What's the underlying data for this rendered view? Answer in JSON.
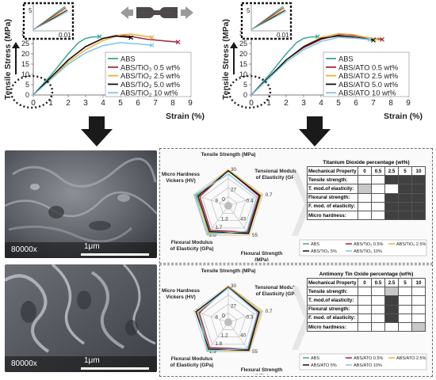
{
  "chart_data": [
    {
      "type": "line",
      "xlabel": "Strain (%)",
      "ylabel": "Tensile Stress (MPa)",
      "xlim": [
        0,
        9
      ],
      "ylim": [
        0,
        30
      ],
      "x_ticks": [
        "0",
        "1",
        "2",
        "3",
        "4",
        "5",
        "6",
        "7",
        "8",
        "9"
      ],
      "y_ticks": [
        "0",
        "5",
        "10",
        "15",
        "20",
        "25",
        "30"
      ],
      "inset_label": "0.01",
      "inset_y_label": "5",
      "series": [
        {
          "name": "ABS",
          "color": "#3aa897",
          "x": [
            0,
            1,
            2,
            2.6,
            3.0,
            3.4,
            3.8
          ],
          "y": [
            0,
            9.5,
            20,
            25.5,
            27.5,
            28.2,
            28.4
          ]
        },
        {
          "name": "ABS/TiO₂ 0.5 wt%",
          "color": "#a3243b",
          "x": [
            0,
            1,
            2,
            3,
            4,
            4.8,
            5.5,
            6.5,
            7.5,
            8.3
          ],
          "y": [
            0,
            8.5,
            17,
            23.5,
            27.5,
            29,
            28.6,
            27.1,
            26.3,
            25.7
          ]
        },
        {
          "name": "ABS/TiO₂ 2.5 wt%",
          "color": "#e9b23b",
          "x": [
            0,
            1,
            2,
            3,
            4,
            5,
            5.6,
            6.3,
            6.8
          ],
          "y": [
            0,
            8,
            16,
            22,
            26.5,
            29.2,
            29.6,
            28.7,
            28
          ]
        },
        {
          "name": "ABS/TiO₂ 5.0 wt%",
          "color": "#111111",
          "x": [
            0,
            1,
            2,
            3,
            4,
            4.7,
            5.3,
            5.6
          ],
          "y": [
            0,
            8.5,
            17,
            23.5,
            27.5,
            28.6,
            28.2,
            27.9
          ]
        },
        {
          "name": "ABS/TiO₂ 10 wt%",
          "color": "#7fc6e4",
          "x": [
            0,
            1,
            2,
            3,
            4,
            5,
            6,
            6.8
          ],
          "y": [
            0,
            7.5,
            15,
            20.5,
            24,
            25.5,
            24.8,
            24.2
          ]
        }
      ]
    },
    {
      "type": "line",
      "xlabel": "Strain (%)",
      "ylabel": "Tensile Stress (MPa)",
      "xlim": [
        0,
        9
      ],
      "ylim": [
        0,
        30
      ],
      "x_ticks": [
        "0",
        "1",
        "2",
        "3",
        "4",
        "5",
        "6",
        "7",
        "8",
        "9"
      ],
      "y_ticks": [
        "0",
        "5",
        "10",
        "15",
        "20",
        "25",
        "30"
      ],
      "inset_label": "0.01",
      "inset_y_label": "5",
      "series": [
        {
          "name": "ABS",
          "color": "#3aa897",
          "x": [
            0,
            1,
            2,
            2.6,
            3.0,
            3.4,
            3.8
          ],
          "y": [
            0,
            9.5,
            20,
            25.5,
            27.5,
            28.2,
            28.4
          ]
        },
        {
          "name": "ABS/ATO 0.5 wt%",
          "color": "#a3243b",
          "x": [
            0,
            1,
            2,
            3,
            4,
            5,
            5.5,
            6.5,
            7.5
          ],
          "y": [
            0,
            8.5,
            17,
            23,
            27,
            29.2,
            29.3,
            28,
            27
          ]
        },
        {
          "name": "ABS/ATO 2.5 wt%",
          "color": "#e9b23b",
          "x": [
            0,
            1,
            2,
            3,
            4,
            5,
            5.8,
            6.5,
            7.2
          ],
          "y": [
            0,
            8.5,
            17,
            23.5,
            28,
            29.8,
            29.4,
            28.2,
            27.2
          ]
        },
        {
          "name": "ABS/ATO 5.0 wt%",
          "color": "#111111",
          "x": [
            0,
            1,
            2,
            3,
            4,
            5,
            5.6,
            6.3,
            7.0
          ],
          "y": [
            0,
            8.5,
            17,
            23.5,
            27.5,
            28.7,
            28.4,
            27.6,
            26.6
          ]
        },
        {
          "name": "ABS/ATO 10 wt%",
          "color": "#7fc6e4",
          "x": [
            0,
            1,
            2,
            3,
            4,
            5,
            6,
            6.8
          ],
          "y": [
            0,
            8,
            16,
            22,
            26,
            28,
            27.6,
            26.8
          ]
        }
      ]
    },
    {
      "type": "radar",
      "axes": [
        "Tensile Strength (MPa)",
        "Tensional Modulus of Elasticity (GPa)",
        "Flexural Strength (MPa)",
        "Flexural Modulus of Elasticity (GPa)",
        "Micro Hardness Vickers (HV)"
      ],
      "axis_ticks": [
        [
          "27",
          "30"
        ],
        [
          "0.4",
          "0.7"
        ],
        [
          "43",
          "55"
        ],
        [
          "1.3",
          "1.7",
          "2.0"
        ],
        [
          "9",
          "12"
        ]
      ],
      "center_label": "0",
      "max": [
        30,
        0.7,
        55,
        2.0,
        12
      ],
      "series": [
        {
          "name": "ABS",
          "color": "#3aa897",
          "values": [
            28.5,
            0.62,
            50,
            1.75,
            11.0
          ]
        },
        {
          "name": "ABS/TiO₂ 0.5%",
          "color": "#a3243b",
          "values": [
            29.0,
            0.6,
            48,
            1.6,
            9.5
          ]
        },
        {
          "name": "ABS/TiO₂ 2.5%",
          "color": "#e9b23b",
          "values": [
            29.6,
            0.66,
            52,
            1.85,
            10.5
          ]
        },
        {
          "name": "ABS/TiO₂ 5%",
          "color": "#111111",
          "values": [
            28.7,
            0.63,
            51,
            1.7,
            10.2
          ]
        },
        {
          "name": "ABS/TiO₂ 10%",
          "color": "#7fc6e4",
          "values": [
            25.5,
            0.55,
            46,
            1.95,
            11.5
          ]
        }
      ]
    },
    {
      "type": "radar",
      "axes": [
        "Tensile Strength (MPa)",
        "Tensional Modulus of Elasticity (GPa)",
        "Flexural Strength (MPa)",
        "Flexural Modulus of Elasticity (GPa)",
        "Micro Hardness Vickers (HV)"
      ],
      "axis_ticks": [
        [
          "27",
          "30"
        ],
        [
          "0.3",
          "0.7"
        ],
        [
          "40",
          "55"
        ],
        [
          "1.2",
          "1.8",
          "1.9"
        ],
        [
          "8",
          "13"
        ]
      ],
      "center_label": "0",
      "max": [
        30,
        0.7,
        55,
        1.9,
        13
      ],
      "series": [
        {
          "name": "ABS",
          "color": "#3aa897",
          "values": [
            28.5,
            0.62,
            50,
            1.75,
            11.0
          ]
        },
        {
          "name": "ABS/ATO 0.5%",
          "color": "#a3243b",
          "values": [
            29.3,
            0.58,
            49,
            1.6,
            10.5
          ]
        },
        {
          "name": "ABS/ATO 2.5%",
          "color": "#e9b23b",
          "values": [
            29.8,
            0.66,
            53,
            1.8,
            11.5
          ]
        },
        {
          "name": "ABS/ATO 5%",
          "color": "#111111",
          "values": [
            28.7,
            0.61,
            52,
            1.7,
            12.0
          ]
        },
        {
          "name": "ABS/ATO 10%",
          "color": "#7fc6e4",
          "values": [
            28.0,
            0.57,
            48,
            1.85,
            11.0
          ]
        }
      ]
    },
    {
      "type": "table",
      "title": "Titanium Dioxide percentage (wt%)",
      "header": [
        "Mechanical Property",
        "0",
        "0.5",
        "2.5",
        "5",
        "10"
      ],
      "rows": [
        {
          "label": "Tensile strength:",
          "cells": [
            0,
            0,
            0,
            2,
            2,
            2
          ]
        },
        {
          "label": "T. mod.of elasticity:",
          "cells": [
            0,
            1,
            0,
            0,
            2,
            2
          ]
        },
        {
          "label": "Flexural strength:",
          "cells": [
            0,
            0,
            0,
            2,
            2,
            2
          ]
        },
        {
          "label": "F. mod. of elasticity:",
          "cells": [
            0,
            0,
            0,
            2,
            2,
            2
          ]
        },
        {
          "label": "Micro hardness:",
          "cells": [
            0,
            0,
            0,
            2,
            2,
            2
          ]
        }
      ]
    },
    {
      "type": "table",
      "title": "Antimony Tin Oxide percentage (wt%)",
      "header": [
        "Mechanical Property",
        "0",
        "0.5",
        "2.5",
        "5",
        "10"
      ],
      "rows": [
        {
          "label": "Tensile strength:",
          "cells": [
            0,
            0,
            0,
            1,
            0,
            0
          ]
        },
        {
          "label": "T. mod.of elasticity:",
          "cells": [
            0,
            0,
            0,
            2,
            0,
            0
          ]
        },
        {
          "label": "Flexural strength:",
          "cells": [
            0,
            0,
            0,
            2,
            0,
            0
          ]
        },
        {
          "label": "F. mod. of elasticity:",
          "cells": [
            0,
            0,
            0,
            2,
            0,
            0
          ]
        },
        {
          "label": "Micro hardness:",
          "cells": [
            0,
            0,
            0,
            0,
            0,
            1
          ]
        }
      ]
    }
  ],
  "sem": {
    "top": {
      "magnification": "80000x",
      "scale": "1μm"
    },
    "bottom": {
      "magnification": "80000x",
      "scale": "1μm"
    }
  },
  "colors": {
    "shade_light": "#c8c8c8",
    "shade_dark": "#404040",
    "arrow": "#1a1a1a"
  }
}
